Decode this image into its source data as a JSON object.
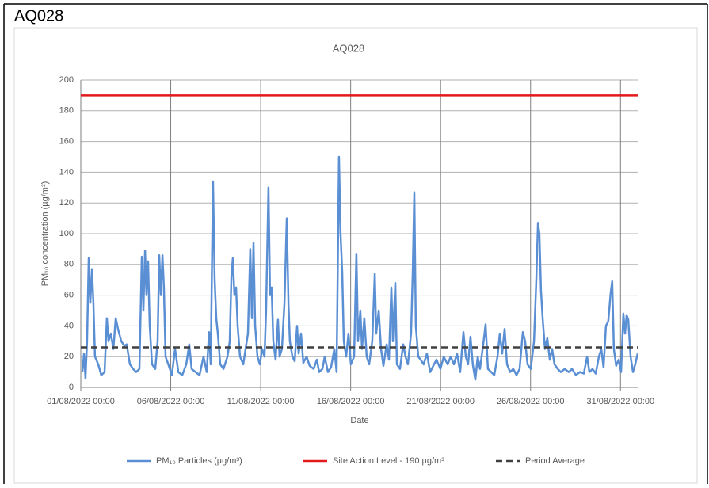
{
  "page_title": "AQ028",
  "chart_data": {
    "type": "line",
    "title": "AQ028",
    "x_label": "Date",
    "y_label": "PM₁₀ concentration (µg/m³)",
    "xlim": [
      0,
      31
    ],
    "xticks": [
      {
        "value": 0,
        "label": "01/08/2022 00:00"
      },
      {
        "value": 5,
        "label": "06/08/2022 00:00"
      },
      {
        "value": 10,
        "label": "11/08/2022 00:00"
      },
      {
        "value": 15,
        "label": "16/08/2022 00:00"
      },
      {
        "value": 20,
        "label": "21/08/2022 00:00"
      },
      {
        "value": 25,
        "label": "26/08/2022 00:00"
      },
      {
        "value": 30,
        "label": "31/08/2022 00:00"
      }
    ],
    "ylim": [
      0,
      200
    ],
    "yticks": [
      0,
      20,
      40,
      60,
      80,
      100,
      120,
      140,
      160,
      180,
      200
    ],
    "grid": true,
    "legend": "bottom",
    "series": [
      {
        "name": "PM₁₀ Particles (µg/m³)",
        "color": "#5b8fd4",
        "x": [
          0.09,
          0.18,
          0.26,
          0.35,
          0.44,
          0.53,
          0.62,
          0.7,
          0.79,
          0.97,
          1.14,
          1.32,
          1.45,
          1.54,
          1.67,
          1.81,
          1.94,
          2.07,
          2.25,
          2.42,
          2.55,
          2.73,
          2.91,
          3.08,
          3.26,
          3.39,
          3.48,
          3.57,
          3.65,
          3.74,
          3.83,
          3.96,
          4.14,
          4.27,
          4.36,
          4.45,
          4.54,
          4.62,
          4.71,
          4.89,
          5.06,
          5.24,
          5.42,
          5.64,
          5.86,
          6.03,
          6.16,
          6.38,
          6.6,
          6.82,
          7.0,
          7.13,
          7.22,
          7.35,
          7.44,
          7.53,
          7.62,
          7.75,
          7.93,
          8.15,
          8.28,
          8.37,
          8.45,
          8.54,
          8.63,
          8.72,
          8.85,
          9.03,
          9.16,
          9.29,
          9.42,
          9.51,
          9.6,
          9.69,
          9.82,
          9.95,
          10.08,
          10.21,
          10.3,
          10.43,
          10.52,
          10.61,
          10.7,
          10.83,
          10.96,
          11.05,
          11.18,
          11.32,
          11.45,
          11.54,
          11.62,
          11.76,
          11.89,
          12.02,
          12.11,
          12.24,
          12.37,
          12.55,
          12.72,
          12.94,
          13.12,
          13.25,
          13.43,
          13.56,
          13.74,
          13.91,
          14.09,
          14.22,
          14.35,
          14.44,
          14.53,
          14.62,
          14.75,
          14.88,
          15.01,
          15.19,
          15.32,
          15.41,
          15.54,
          15.63,
          15.76,
          15.89,
          16.03,
          16.2,
          16.34,
          16.42,
          16.56,
          16.69,
          16.82,
          17.0,
          17.13,
          17.26,
          17.35,
          17.48,
          17.57,
          17.74,
          17.92,
          18.05,
          18.18,
          18.36,
          18.45,
          18.54,
          18.62,
          18.76,
          18.89,
          19.06,
          19.24,
          19.42,
          19.59,
          19.77,
          19.99,
          20.17,
          20.39,
          20.56,
          20.74,
          20.91,
          21.09,
          21.27,
          21.4,
          21.53,
          21.66,
          21.79,
          21.93,
          22.06,
          22.19,
          22.37,
          22.5,
          22.63,
          22.81,
          22.98,
          23.16,
          23.29,
          23.42,
          23.56,
          23.69,
          23.86,
          24.04,
          24.22,
          24.39,
          24.57,
          24.7,
          24.83,
          25.01,
          25.19,
          25.32,
          25.41,
          25.49,
          25.58,
          25.67,
          25.8,
          25.93,
          26.07,
          26.2,
          26.33,
          26.51,
          26.68,
          26.9,
          27.12,
          27.3,
          27.52,
          27.74,
          27.96,
          28.14,
          28.27,
          28.44,
          28.62,
          28.8,
          28.93,
          29.06,
          29.19,
          29.32,
          29.46,
          29.54,
          29.63,
          29.76,
          29.9,
          30.03,
          30.16,
          30.25,
          30.34,
          30.43,
          30.56,
          30.69,
          30.82,
          30.95
        ],
        "values": [
          10,
          22,
          6,
          30,
          84,
          55,
          77,
          55,
          20,
          15,
          8,
          10,
          45,
          30,
          35,
          25,
          45,
          38,
          30,
          27,
          28,
          15,
          12,
          10,
          12,
          85,
          50,
          89,
          60,
          82,
          40,
          15,
          12,
          30,
          86,
          60,
          86,
          65,
          20,
          14,
          8,
          25,
          10,
          8,
          15,
          28,
          12,
          10,
          8,
          20,
          10,
          36,
          15,
          134,
          70,
          45,
          35,
          15,
          12,
          20,
          30,
          72,
          84,
          60,
          65,
          40,
          20,
          15,
          25,
          35,
          90,
          45,
          94,
          40,
          20,
          15,
          25,
          20,
          50,
          130,
          60,
          65,
          30,
          18,
          44,
          20,
          25,
          55,
          110,
          55,
          30,
          20,
          17,
          40,
          22,
          35,
          16,
          20,
          14,
          12,
          18,
          10,
          12,
          20,
          10,
          13,
          25,
          10,
          150,
          100,
          75,
          30,
          20,
          35,
          15,
          20,
          87,
          30,
          50,
          25,
          45,
          20,
          15,
          30,
          74,
          35,
          50,
          25,
          14,
          28,
          18,
          65,
          30,
          68,
          15,
          12,
          28,
          20,
          15,
          35,
          74,
          127,
          40,
          20,
          18,
          15,
          22,
          10,
          14,
          18,
          12,
          20,
          15,
          20,
          15,
          22,
          10,
          36,
          20,
          15,
          33,
          15,
          5,
          20,
          12,
          28,
          41,
          12,
          10,
          8,
          20,
          35,
          22,
          38,
          15,
          10,
          12,
          8,
          12,
          36,
          30,
          15,
          12,
          30,
          70,
          107,
          100,
          63,
          45,
          25,
          32,
          18,
          25,
          15,
          12,
          10,
          12,
          10,
          12,
          8,
          10,
          9,
          20,
          10,
          12,
          9,
          20,
          25,
          13,
          40,
          43,
          62,
          69,
          25,
          14,
          18,
          10,
          48,
          35,
          47,
          44,
          20,
          10,
          15,
          22
        ]
      },
      {
        "name": "Site Action Level - 190 µg/m³",
        "color": "#e31a1c",
        "value": 190
      },
      {
        "name": "Period Average",
        "color": "#404040",
        "value": 26,
        "dashed": true
      }
    ]
  }
}
